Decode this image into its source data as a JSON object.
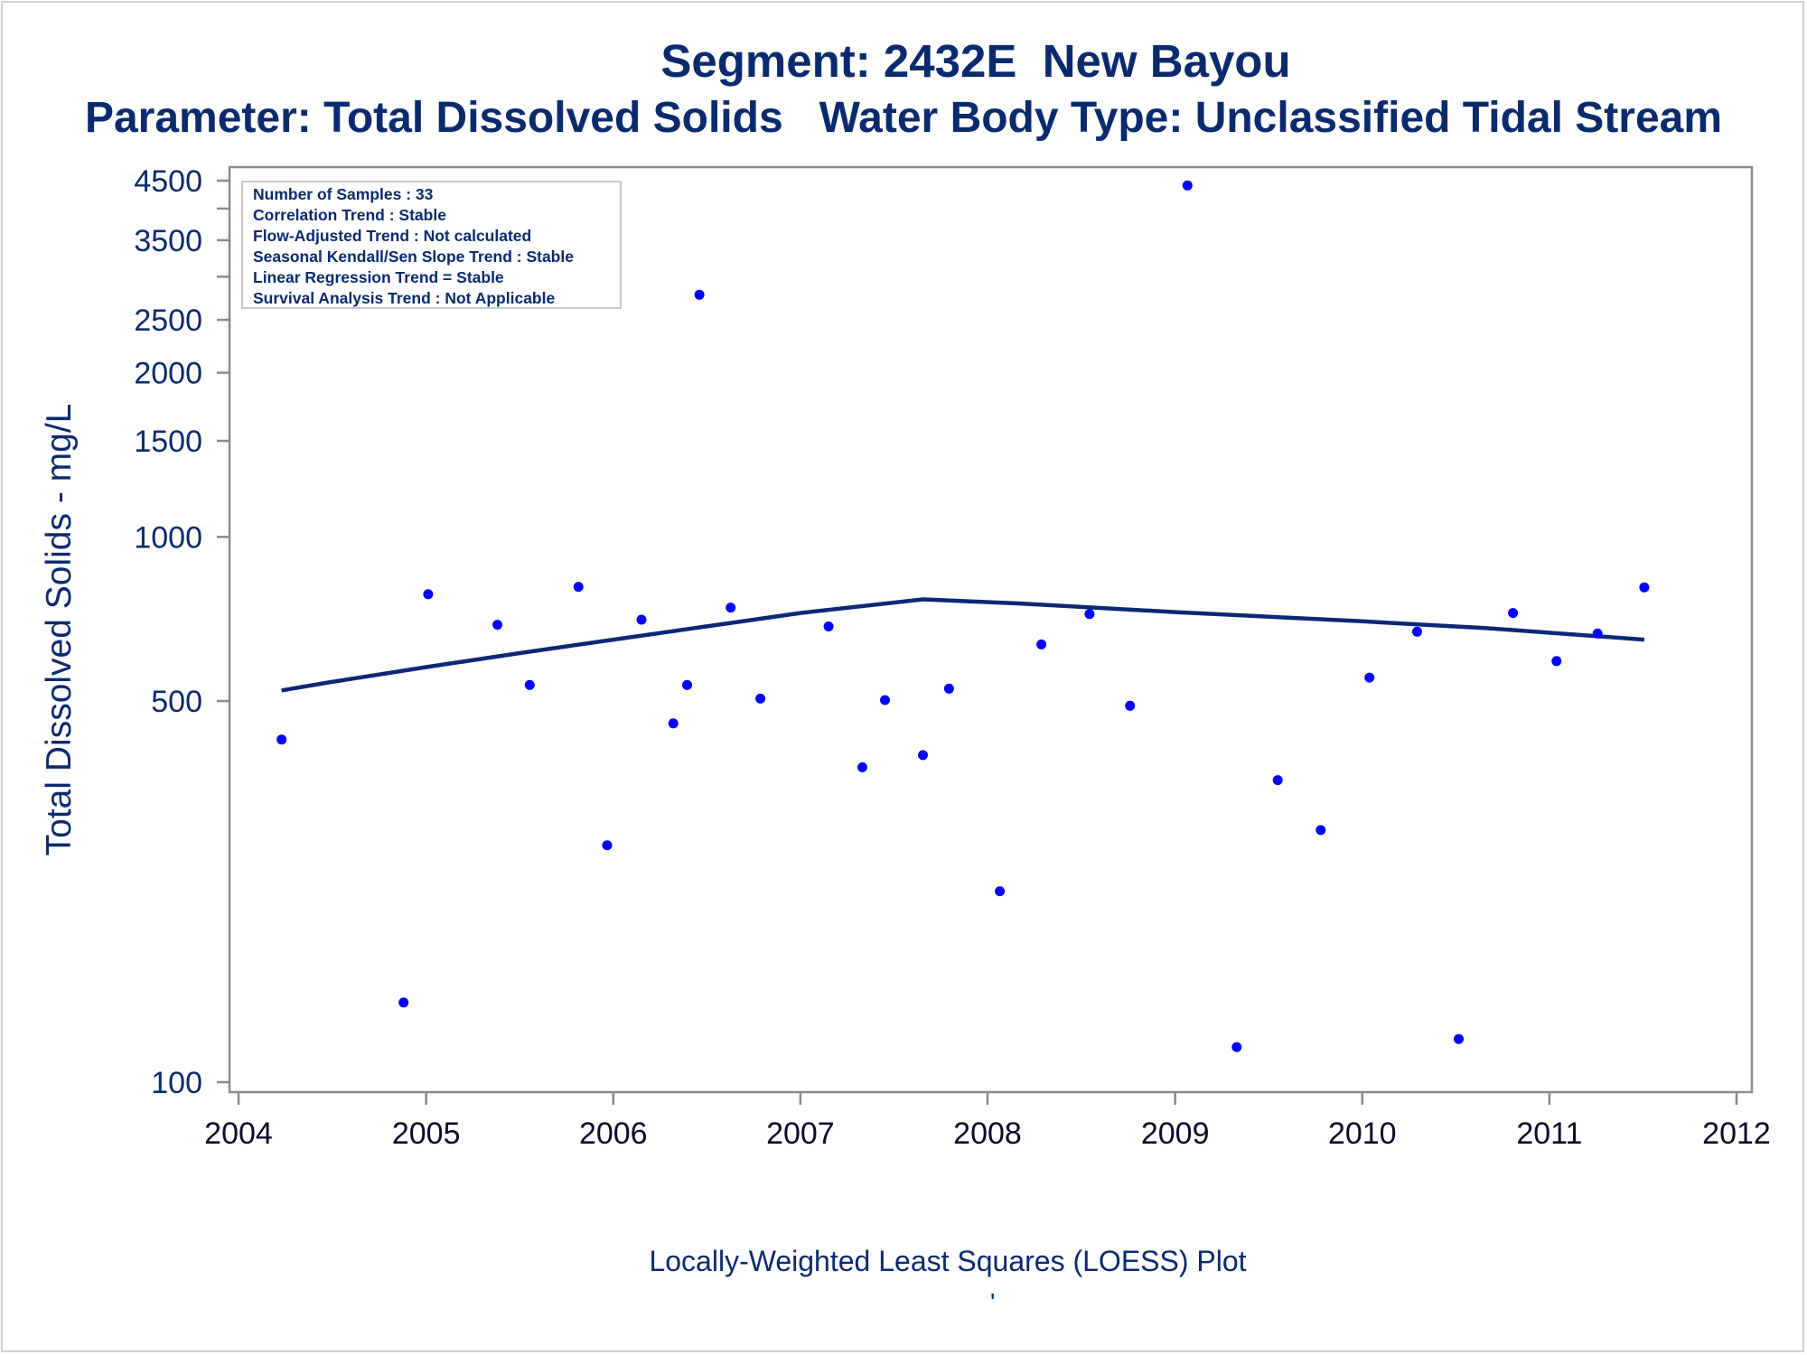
{
  "chart_data": {
    "type": "scatter",
    "title": "Segment: 2432E  New Bayou",
    "subtitle": "Parameter: Total Dissolved Solids   Water Body Type: Unclassified Tidal Stream",
    "xlabel": "",
    "ylabel": "Total Dissolved Solids - mg/L",
    "footnote": "Locally-Weighted Least Squares (LOESS) Plot",
    "footnote_mark": "'",
    "x_scale": "date",
    "y_scale": "log",
    "xlim": [
      "2003-12-31",
      "2012-01-01"
    ],
    "ylim": [
      96,
      5000
    ],
    "x_ticks": [
      "2004",
      "2005",
      "2006",
      "2007",
      "2008",
      "2009",
      "2010",
      "2011",
      "2012"
    ],
    "y_ticks": [
      "100",
      "500",
      "1000",
      "1500",
      "2000",
      "2500",
      "3500",
      "4500"
    ],
    "y_minor_ticks": [
      3000,
      4000
    ],
    "grid": false,
    "legend": "none",
    "info_box": {
      "position": "top-left",
      "lines": [
        "Number of Samples : 33",
        "Correlation Trend : Stable",
        "Flow-Adjusted Trend : Not calculated",
        "Seasonal Kendall/Sen Slope Trend : Stable",
        "Linear Regression Trend = Stable",
        "Survival Analysis Trend : Not Applicable"
      ]
    },
    "series": [
      {
        "type": "scatter",
        "points": [
          {
            "x": "2004-03-25",
            "y": 425
          },
          {
            "x": "2004-11-18",
            "y": 140
          },
          {
            "x": "2005-01-05",
            "y": 785
          },
          {
            "x": "2005-05-20",
            "y": 690
          },
          {
            "x": "2005-07-22",
            "y": 535
          },
          {
            "x": "2005-10-25",
            "y": 810
          },
          {
            "x": "2005-12-20",
            "y": 272
          },
          {
            "x": "2006-02-25",
            "y": 705
          },
          {
            "x": "2006-04-28",
            "y": 455
          },
          {
            "x": "2006-05-25",
            "y": 535
          },
          {
            "x": "2006-06-18",
            "y": 2780
          },
          {
            "x": "2006-08-18",
            "y": 742
          },
          {
            "x": "2006-10-15",
            "y": 505
          },
          {
            "x": "2007-02-25",
            "y": 685
          },
          {
            "x": "2007-05-02",
            "y": 378
          },
          {
            "x": "2007-06-15",
            "y": 502
          },
          {
            "x": "2007-08-28",
            "y": 398
          },
          {
            "x": "2007-10-18",
            "y": 527
          },
          {
            "x": "2008-01-25",
            "y": 224
          },
          {
            "x": "2008-04-15",
            "y": 635
          },
          {
            "x": "2008-07-18",
            "y": 722
          },
          {
            "x": "2008-10-05",
            "y": 490
          },
          {
            "x": "2009-01-25",
            "y": 4410
          },
          {
            "x": "2009-05-01",
            "y": 116
          },
          {
            "x": "2009-07-20",
            "y": 358
          },
          {
            "x": "2009-10-12",
            "y": 290
          },
          {
            "x": "2010-01-15",
            "y": 552
          },
          {
            "x": "2010-04-18",
            "y": 670
          },
          {
            "x": "2010-07-08",
            "y": 120
          },
          {
            "x": "2010-10-22",
            "y": 725
          },
          {
            "x": "2011-01-15",
            "y": 592
          },
          {
            "x": "2011-04-05",
            "y": 665
          },
          {
            "x": "2011-07-05",
            "y": 808
          }
        ]
      },
      {
        "type": "line",
        "points": [
          {
            "x": "2004-03-25",
            "y": 523
          },
          {
            "x": "2004-07-01",
            "y": 542
          },
          {
            "x": "2005-01-01",
            "y": 577
          },
          {
            "x": "2005-07-01",
            "y": 612
          },
          {
            "x": "2006-01-01",
            "y": 648
          },
          {
            "x": "2006-07-01",
            "y": 685
          },
          {
            "x": "2007-01-01",
            "y": 725
          },
          {
            "x": "2007-08-28",
            "y": 768
          },
          {
            "x": "2008-03-01",
            "y": 755
          },
          {
            "x": "2009-01-01",
            "y": 728
          },
          {
            "x": "2010-01-01",
            "y": 700
          },
          {
            "x": "2010-09-01",
            "y": 680
          },
          {
            "x": "2011-07-05",
            "y": 648
          }
        ]
      }
    ],
    "colors": {
      "text": "#0a2a6e",
      "axis_text": "#0a0a2a",
      "points": "#0000ff",
      "line": "#0b2875",
      "frame": "#8a8a8a"
    }
  }
}
